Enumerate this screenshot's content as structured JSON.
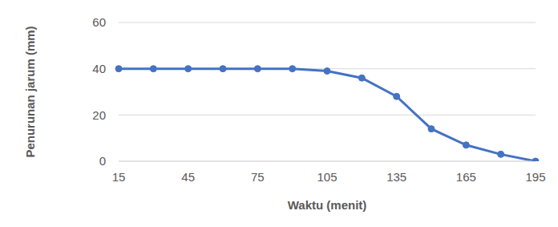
{
  "chart_data": {
    "type": "line",
    "x_label": "Waktu (menit)",
    "y_label": "Penurunan jarum (mm)",
    "categories": [
      "15",
      null,
      "45",
      null,
      "75",
      null,
      "105",
      null,
      "135",
      null,
      "165",
      null,
      "195"
    ],
    "values": [
      40,
      40,
      40,
      40,
      40,
      40,
      39,
      36,
      28,
      14,
      7,
      3,
      0
    ],
    "color": "#4472c4",
    "marker": "circle",
    "ylim": [
      0,
      60
    ],
    "yticks": [
      0,
      20,
      40,
      60
    ],
    "grid": true
  }
}
